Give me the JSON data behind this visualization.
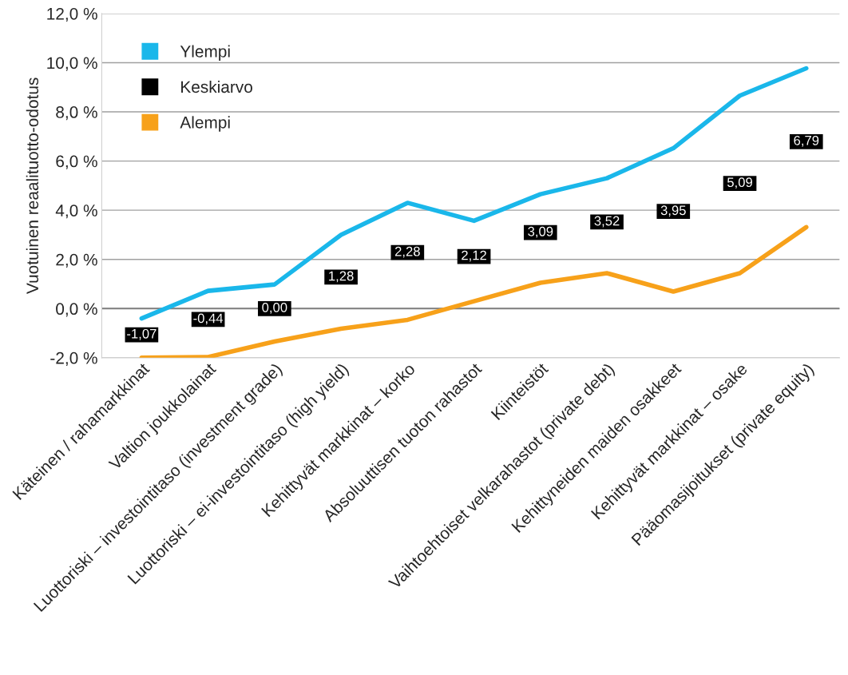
{
  "chart_data": {
    "type": "line",
    "ylabel": "Vuotuinen reaalituotto-odotus",
    "categories": [
      "Käteinen / rahamarkkinat",
      "Valtion joukkolainat",
      "Luottoriski – investointitaso (investment grade)",
      "Luottoriski – ei-investointitaso (high yield)",
      "Kehittyvät markkinat – korko",
      "Absoluuttisen tuoton rahastot",
      "Kiinteistöt",
      "Vaihtoehtoiset velkarahastot (private debt)",
      "Kehittyneiden maiden osakkeet",
      "Kehittyvät markkinat – osake",
      "Pääomasijoitukset (private equity)"
    ],
    "series": [
      {
        "name": "Ylempi",
        "color": "#1ab7ea",
        "values": [
          -0.4,
          0.72,
          0.98,
          3.0,
          4.3,
          3.57,
          4.65,
          5.3,
          6.52,
          8.66,
          9.77
        ]
      },
      {
        "name": "Keskiarvo",
        "type": "scatter",
        "marker": "square",
        "color": "#000000",
        "values": [
          -1.07,
          -0.44,
          0.0,
          1.28,
          2.28,
          2.12,
          3.09,
          3.52,
          3.95,
          5.09,
          6.79
        ],
        "value_labels": [
          "-1,07",
          "-0,44",
          "0,00",
          "1,28",
          "2,28",
          "2,12",
          "3,09",
          "3,52",
          "3,95",
          "5,09",
          "6,79"
        ]
      },
      {
        "name": "Alempi",
        "color": "#f7a11a",
        "values": [
          -2.0,
          -1.97,
          -1.34,
          -0.82,
          -0.46,
          0.3,
          1.05,
          1.44,
          0.69,
          1.44,
          3.31
        ]
      }
    ],
    "ylim": [
      -2,
      12
    ],
    "yticks": [
      {
        "value": -2,
        "label": "-2,0 %"
      },
      {
        "value": 0,
        "label": "0,0 %"
      },
      {
        "value": 2,
        "label": "2,0 %"
      },
      {
        "value": 4,
        "label": "4,0 %"
      },
      {
        "value": 6,
        "label": "6,0 %"
      },
      {
        "value": 8,
        "label": "8,0 %"
      },
      {
        "value": 10,
        "label": "10,0 %"
      },
      {
        "value": 12,
        "label": "12,0 %"
      }
    ],
    "ref_lines": [
      {
        "axis": "y",
        "value": 0,
        "color": "#808080"
      }
    ],
    "grid": "y",
    "legend": "top left",
    "line_style": "solid"
  }
}
